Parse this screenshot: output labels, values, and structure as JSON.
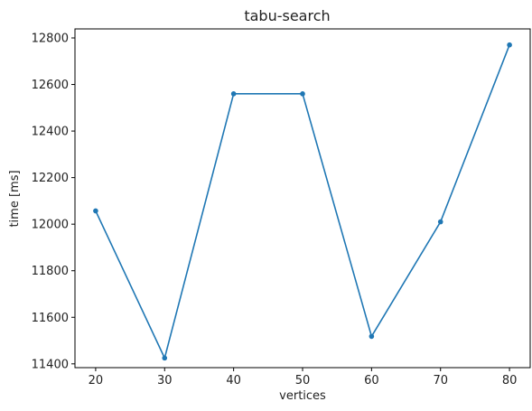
{
  "chart_data": {
    "type": "line",
    "title": "tabu-search",
    "xlabel": "vertices",
    "ylabel": "time [ms]",
    "x": [
      20,
      30,
      40,
      50,
      60,
      70,
      80
    ],
    "series": [
      {
        "values": [
          12057,
          11425,
          12560,
          12560,
          11518,
          12010,
          12770
        ],
        "color": "#1f77b4"
      }
    ],
    "xticks": [
      20,
      30,
      40,
      50,
      60,
      70,
      80
    ],
    "yticks": [
      11400,
      11600,
      11800,
      12000,
      12200,
      12400,
      12600,
      12800
    ],
    "xlim": [
      17,
      83
    ],
    "ylim": [
      11383.75,
      12838.75
    ],
    "grid": false,
    "legend": "none"
  }
}
